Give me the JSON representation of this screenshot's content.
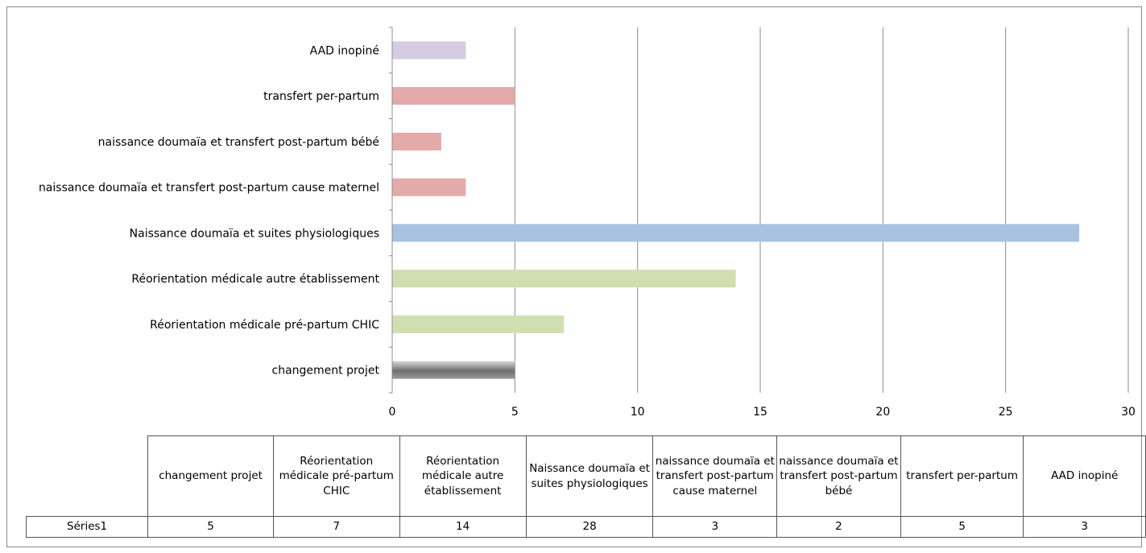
{
  "chart_data": {
    "type": "bar",
    "orientation": "horizontal",
    "categories": [
      "changement projet",
      "Réorientation médicale pré-partum CHIC",
      "Réorientation médicale autre établissement",
      "Naissance doumaïa et suites physiologiques",
      "naissance doumaïa et transfert post-partum cause maternel",
      "naissance doumaïa et transfert post-partum bébé",
      "transfert per-partum",
      "AAD inopiné"
    ],
    "series": [
      {
        "name": "Séries1",
        "values": [
          5,
          7,
          14,
          28,
          3,
          2,
          5,
          3
        ]
      }
    ],
    "bar_colors": [
      "#808080",
      "#d0dfb0",
      "#d0dfb0",
      "#a8c2e0",
      "#e3aaaa",
      "#e3aaaa",
      "#e3aaaa",
      "#d6cce2"
    ],
    "xlim": [
      0,
      30
    ],
    "x_ticks": [
      0,
      5,
      10,
      15,
      20,
      25,
      30
    ],
    "grid": "vertical",
    "legend": "none",
    "title": "",
    "xlabel": "",
    "ylabel": ""
  },
  "table": {
    "headers": [
      "changement projet",
      "Réorientation médicale pré-partum CHIC",
      "Réorientation médicale autre établissement",
      "Naissance doumaïa et suites physiologiques",
      "naissance doumaïa et transfert post-partum cause maternel",
      "naissance doumaïa et transfert post-partum bébé",
      "transfert per-partum",
      "AAD inopiné"
    ],
    "row_label": "Séries1",
    "values": [
      "5",
      "7",
      "14",
      "28",
      "3",
      "2",
      "5",
      "3"
    ]
  }
}
